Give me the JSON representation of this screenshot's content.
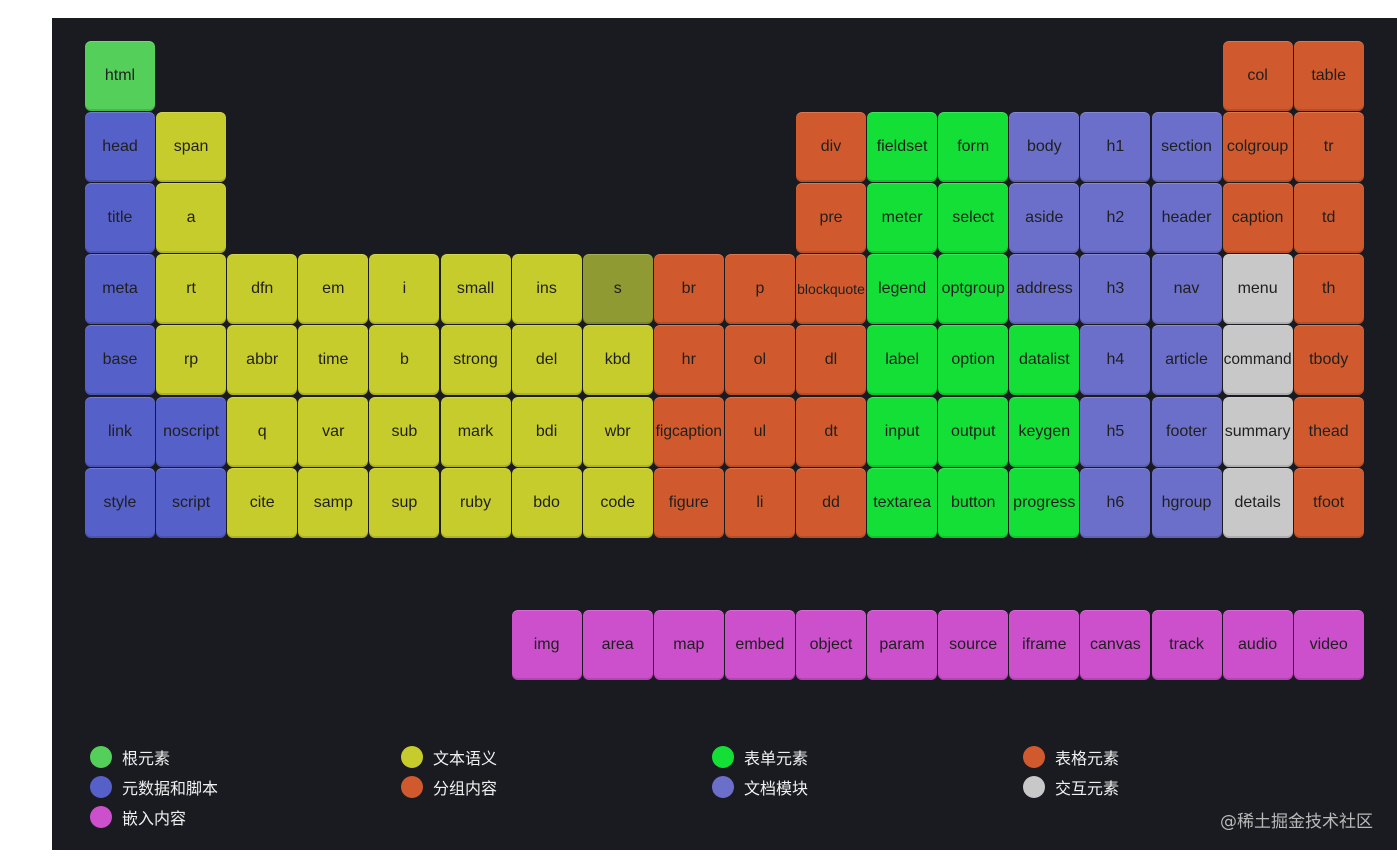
{
  "colors": {
    "root": "#53cf5a",
    "metadata": "#5560c9",
    "text": "#c7cc2d",
    "text_dim": "#8f9a33",
    "grouping": "#d05a2d",
    "form": "#14df36",
    "sections": "#6b6fc9",
    "table": "#d05a2d",
    "interactive": "#c8c8c8",
    "embedded": "#cc4fcc"
  },
  "elements": [
    {
      "label": "html",
      "cat": "root"
    },
    {
      "label": "col",
      "cat": "table"
    },
    {
      "label": "table",
      "cat": "table"
    },
    {
      "label": "head",
      "cat": "metadata"
    },
    {
      "label": "span",
      "cat": "text"
    },
    {
      "label": "div",
      "cat": "grouping"
    },
    {
      "label": "fieldset",
      "cat": "form"
    },
    {
      "label": "form",
      "cat": "form"
    },
    {
      "label": "body",
      "cat": "sections"
    },
    {
      "label": "h1",
      "cat": "sections"
    },
    {
      "label": "section",
      "cat": "sections"
    },
    {
      "label": "colgroup",
      "cat": "table"
    },
    {
      "label": "tr",
      "cat": "table"
    },
    {
      "label": "title",
      "cat": "metadata"
    },
    {
      "label": "a",
      "cat": "text"
    },
    {
      "label": "pre",
      "cat": "grouping"
    },
    {
      "label": "meter",
      "cat": "form"
    },
    {
      "label": "select",
      "cat": "form"
    },
    {
      "label": "aside",
      "cat": "sections"
    },
    {
      "label": "h2",
      "cat": "sections"
    },
    {
      "label": "header",
      "cat": "sections"
    },
    {
      "label": "caption",
      "cat": "table"
    },
    {
      "label": "td",
      "cat": "table"
    },
    {
      "label": "meta",
      "cat": "metadata"
    },
    {
      "label": "rt",
      "cat": "text"
    },
    {
      "label": "dfn",
      "cat": "text"
    },
    {
      "label": "em",
      "cat": "text"
    },
    {
      "label": "i",
      "cat": "text"
    },
    {
      "label": "small",
      "cat": "text"
    },
    {
      "label": "ins",
      "cat": "text"
    },
    {
      "label": "s",
      "cat": "text_dim"
    },
    {
      "label": "br",
      "cat": "grouping"
    },
    {
      "label": "p",
      "cat": "grouping"
    },
    {
      "label": "blockquote",
      "cat": "grouping"
    },
    {
      "label": "legend",
      "cat": "form"
    },
    {
      "label": "optgroup",
      "cat": "form"
    },
    {
      "label": "address",
      "cat": "sections"
    },
    {
      "label": "h3",
      "cat": "sections"
    },
    {
      "label": "nav",
      "cat": "sections"
    },
    {
      "label": "menu",
      "cat": "interactive"
    },
    {
      "label": "th",
      "cat": "table"
    },
    {
      "label": "base",
      "cat": "metadata"
    },
    {
      "label": "rp",
      "cat": "text"
    },
    {
      "label": "abbr",
      "cat": "text"
    },
    {
      "label": "time",
      "cat": "text"
    },
    {
      "label": "b",
      "cat": "text"
    },
    {
      "label": "strong",
      "cat": "text"
    },
    {
      "label": "del",
      "cat": "text"
    },
    {
      "label": "kbd",
      "cat": "text"
    },
    {
      "label": "hr",
      "cat": "grouping"
    },
    {
      "label": "ol",
      "cat": "grouping"
    },
    {
      "label": "dl",
      "cat": "grouping"
    },
    {
      "label": "label",
      "cat": "form"
    },
    {
      "label": "option",
      "cat": "form"
    },
    {
      "label": "datalist",
      "cat": "form"
    },
    {
      "label": "h4",
      "cat": "sections"
    },
    {
      "label": "article",
      "cat": "sections"
    },
    {
      "label": "command",
      "cat": "interactive"
    },
    {
      "label": "tbody",
      "cat": "table"
    },
    {
      "label": "link",
      "cat": "metadata"
    },
    {
      "label": "noscript",
      "cat": "metadata"
    },
    {
      "label": "q",
      "cat": "text"
    },
    {
      "label": "var",
      "cat": "text"
    },
    {
      "label": "sub",
      "cat": "text"
    },
    {
      "label": "mark",
      "cat": "text"
    },
    {
      "label": "bdi",
      "cat": "text"
    },
    {
      "label": "wbr",
      "cat": "text"
    },
    {
      "label": "figcaption",
      "cat": "grouping"
    },
    {
      "label": "ul",
      "cat": "grouping"
    },
    {
      "label": "dt",
      "cat": "grouping"
    },
    {
      "label": "input",
      "cat": "form"
    },
    {
      "label": "output",
      "cat": "form"
    },
    {
      "label": "keygen",
      "cat": "form"
    },
    {
      "label": "h5",
      "cat": "sections"
    },
    {
      "label": "footer",
      "cat": "sections"
    },
    {
      "label": "summary",
      "cat": "interactive"
    },
    {
      "label": "thead",
      "cat": "table"
    },
    {
      "label": "style",
      "cat": "metadata"
    },
    {
      "label": "script",
      "cat": "metadata"
    },
    {
      "label": "cite",
      "cat": "text"
    },
    {
      "label": "samp",
      "cat": "text"
    },
    {
      "label": "sup",
      "cat": "text"
    },
    {
      "label": "ruby",
      "cat": "text"
    },
    {
      "label": "bdo",
      "cat": "text"
    },
    {
      "label": "code",
      "cat": "text"
    },
    {
      "label": "figure",
      "cat": "grouping"
    },
    {
      "label": "li",
      "cat": "grouping"
    },
    {
      "label": "dd",
      "cat": "grouping"
    },
    {
      "label": "textarea",
      "cat": "form"
    },
    {
      "label": "button",
      "cat": "form"
    },
    {
      "label": "progress",
      "cat": "form"
    },
    {
      "label": "h6",
      "cat": "sections"
    },
    {
      "label": "hgroup",
      "cat": "sections"
    },
    {
      "label": "details",
      "cat": "interactive"
    },
    {
      "label": "tfoot",
      "cat": "table"
    },
    {
      "label": "img",
      "cat": "embedded"
    },
    {
      "label": "area",
      "cat": "embedded"
    },
    {
      "label": "map",
      "cat": "embedded"
    },
    {
      "label": "embed",
      "cat": "embedded"
    },
    {
      "label": "object",
      "cat": "embedded"
    },
    {
      "label": "param",
      "cat": "embedded"
    },
    {
      "label": "source",
      "cat": "embedded"
    },
    {
      "label": "iframe",
      "cat": "embedded"
    },
    {
      "label": "canvas",
      "cat": "embedded"
    },
    {
      "label": "track",
      "cat": "embedded"
    },
    {
      "label": "audio",
      "cat": "embedded"
    },
    {
      "label": "video",
      "cat": "embedded"
    }
  ],
  "legend": [
    {
      "label": "根元素",
      "cat": "root"
    },
    {
      "label": "文本语义",
      "cat": "text"
    },
    {
      "label": "表单元素",
      "cat": "form"
    },
    {
      "label": "表格元素",
      "cat": "table"
    },
    {
      "label": "元数据和脚本",
      "cat": "metadata"
    },
    {
      "label": "分组内容",
      "cat": "grouping"
    },
    {
      "label": "文档模块",
      "cat": "sections"
    },
    {
      "label": "交互元素",
      "cat": "interactive"
    },
    {
      "label": "嵌入内容",
      "cat": "embedded"
    }
  ],
  "watermark": "@稀土掘金技术社区"
}
